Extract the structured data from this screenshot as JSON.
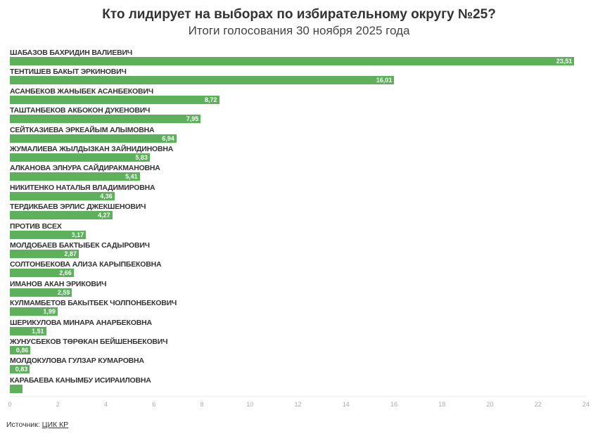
{
  "header": {
    "title": "Кто лидирует на выборах по избирательному округу №25?",
    "subtitle": "Итоги голосования 30 ноября 2025 года"
  },
  "footer": {
    "source_label": "Источник: ",
    "source_link": "ЦИК КР"
  },
  "chart_data": {
    "type": "bar",
    "orientation": "horizontal",
    "title": "Кто лидирует на выборах по избирательному округу №25?",
    "subtitle": "Итоги голосования 30 ноября 2025 года",
    "xlabel": "",
    "ylabel": "",
    "xlim": [
      0,
      24
    ],
    "x_ticks": [
      0,
      2,
      4,
      6,
      8,
      10,
      12,
      14,
      16,
      18,
      20,
      22,
      24
    ],
    "bar_color": "#5cb15a",
    "grid": false,
    "legend": null,
    "categories": [
      "ШАБАЗОВ БАХРИДИН ВАЛИЕВИЧ",
      "ТЕНТИШЕВ БАКЫТ ЭРКИНОВИЧ",
      "АСАНБЕКОВ ЖАНЫБЕК АСАНБЕКОВИЧ",
      "ТАШТАНБЕКОВ АКБОКОН ДУКЕНОВИЧ",
      "СЕЙТКАЗИЕВА ЭРКЕАЙЫМ АЛЫМОВНА",
      "ЖУМАЛИЕВА ЖЫЛДЫЗКАН ЗАЙНИДИНОВНА",
      "АЛКАНОВА ЭЛНУРА САЙДИРАКМАНОВНА",
      "НИКИТЕНКО НАТАЛЬЯ ВЛАДИМИРОВНА",
      "ТЕРДИКБАЕВ ЭРЛИС ДЖЕКШЕНОВИЧ",
      "ПРОТИВ ВСЕХ",
      "МОЛДОБАЕВ БАКТЫБЕК САДЫРОВИЧ",
      "СОЛТОНБЕКОВА АЛИЗА КАРЫПБЕКОВНА",
      "ИМАНОВ АКАН ЭРИКОВИЧ",
      "КУЛМАМБЕТОВ БАКЫТБЕК ЧОЛПОНБЕКОВИЧ",
      "ШЕРИКУЛОВА МИНАРА АНАРБЕКОВНА",
      "ЖУНУСБЕКОВ ТӨРӨКАН БЕЙШЕНБЕКОВИЧ",
      "МОЛДОКУЛОВА ГУЛЗАР КУМАРОВНА",
      "КАРАБАЕВА КАНЫМБУ ИСИРАИЛОВНА"
    ],
    "values": [
      23.51,
      16.01,
      8.72,
      7.95,
      6.94,
      5.83,
      5.41,
      4.36,
      4.27,
      3.17,
      2.87,
      2.66,
      2.59,
      1.99,
      1.51,
      0.86,
      0.83,
      0.53
    ],
    "value_labels": [
      "23,51",
      "16,01",
      "8,72",
      "7,95",
      "6,94",
      "5,83",
      "5,41",
      "4,36",
      "4,27",
      "3,17",
      "2,87",
      "2,66",
      "2,59",
      "1,99",
      "1,51",
      "0,86",
      "0,83",
      ""
    ]
  }
}
